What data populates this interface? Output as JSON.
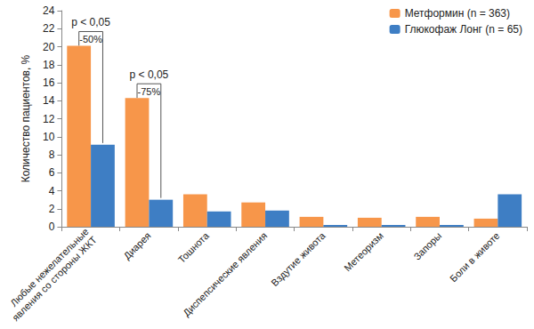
{
  "chart_data": {
    "type": "bar",
    "y_label": "Количество пациентов, %",
    "categories": [
      "Любые нежелательные\nявления со стороны ЖКТ",
      "Диарея",
      "Тошнота",
      "Диспепсические явления",
      "Вздутие живота",
      "Метеоризм",
      "Запоры",
      "Боли в животе"
    ],
    "series": [
      {
        "name": "Метформин (n = 363)",
        "color": "#F7964A",
        "values": [
          20.1,
          14.3,
          3.6,
          2.7,
          1.1,
          1.0,
          1.1,
          0.9
        ]
      },
      {
        "name": "Глюкофаж Лонг (n = 65)",
        "color": "#3E7EC4",
        "values": [
          9.1,
          3.0,
          1.7,
          1.8,
          0.2,
          0.2,
          0.2,
          3.6
        ]
      }
    ],
    "ylim": [
      0,
      24
    ],
    "yticks": [
      0,
      2,
      4,
      6,
      8,
      10,
      12,
      14,
      16,
      18,
      20,
      22,
      24
    ],
    "grid": false,
    "legend": "upper right",
    "annotations": [
      {
        "category": "Любые нежелательные\nявления со стороны ЖКТ",
        "p_value": "p < 0,05",
        "change": "-50%"
      },
      {
        "category": "Диарея",
        "p_value": "p < 0,05",
        "change": "-75%"
      }
    ]
  }
}
